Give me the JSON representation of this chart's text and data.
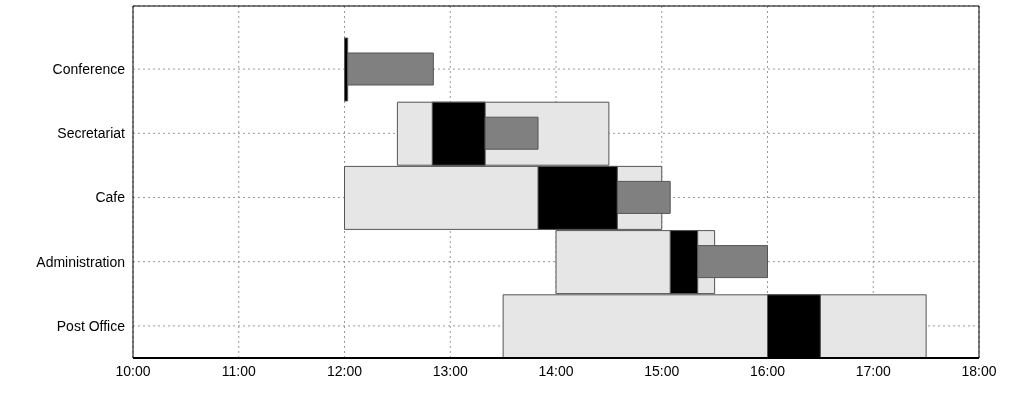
{
  "chart_data": {
    "type": "bar",
    "orientation": "horizontal",
    "categories": [
      "Conference",
      "Secretariat",
      "Cafe",
      "Administration",
      "Post Office"
    ],
    "series": [
      {
        "color": "#e6e6e6",
        "base": [
          null,
          12.5,
          12,
          14,
          13.5
        ],
        "values": [
          null,
          2,
          3,
          1.5,
          4
        ]
      },
      {
        "color": "#000000",
        "base": [
          12,
          12.83,
          13.83,
          15.08,
          16
        ],
        "values": [
          0.03,
          0.5,
          0.75,
          0.26,
          0.5
        ]
      },
      {
        "color": "#808080",
        "base": [
          12.03,
          13.33,
          14.58,
          15.34,
          null
        ],
        "values": [
          0.81,
          0.5,
          0.5,
          0.66,
          null
        ]
      }
    ],
    "xlim": [
      10,
      18
    ],
    "xticks": [
      {
        "value": 10,
        "label": "10:00"
      },
      {
        "value": 11,
        "label": "11:00"
      },
      {
        "value": 12,
        "label": "12:00"
      },
      {
        "value": 13,
        "label": "13:00"
      },
      {
        "value": 14,
        "label": "14:00"
      },
      {
        "value": 15,
        "label": "15:00"
      },
      {
        "value": 16,
        "label": "16:00"
      },
      {
        "value": 17,
        "label": "17:00"
      },
      {
        "value": 18,
        "label": "18:00"
      }
    ],
    "grid": true,
    "legend": false
  }
}
